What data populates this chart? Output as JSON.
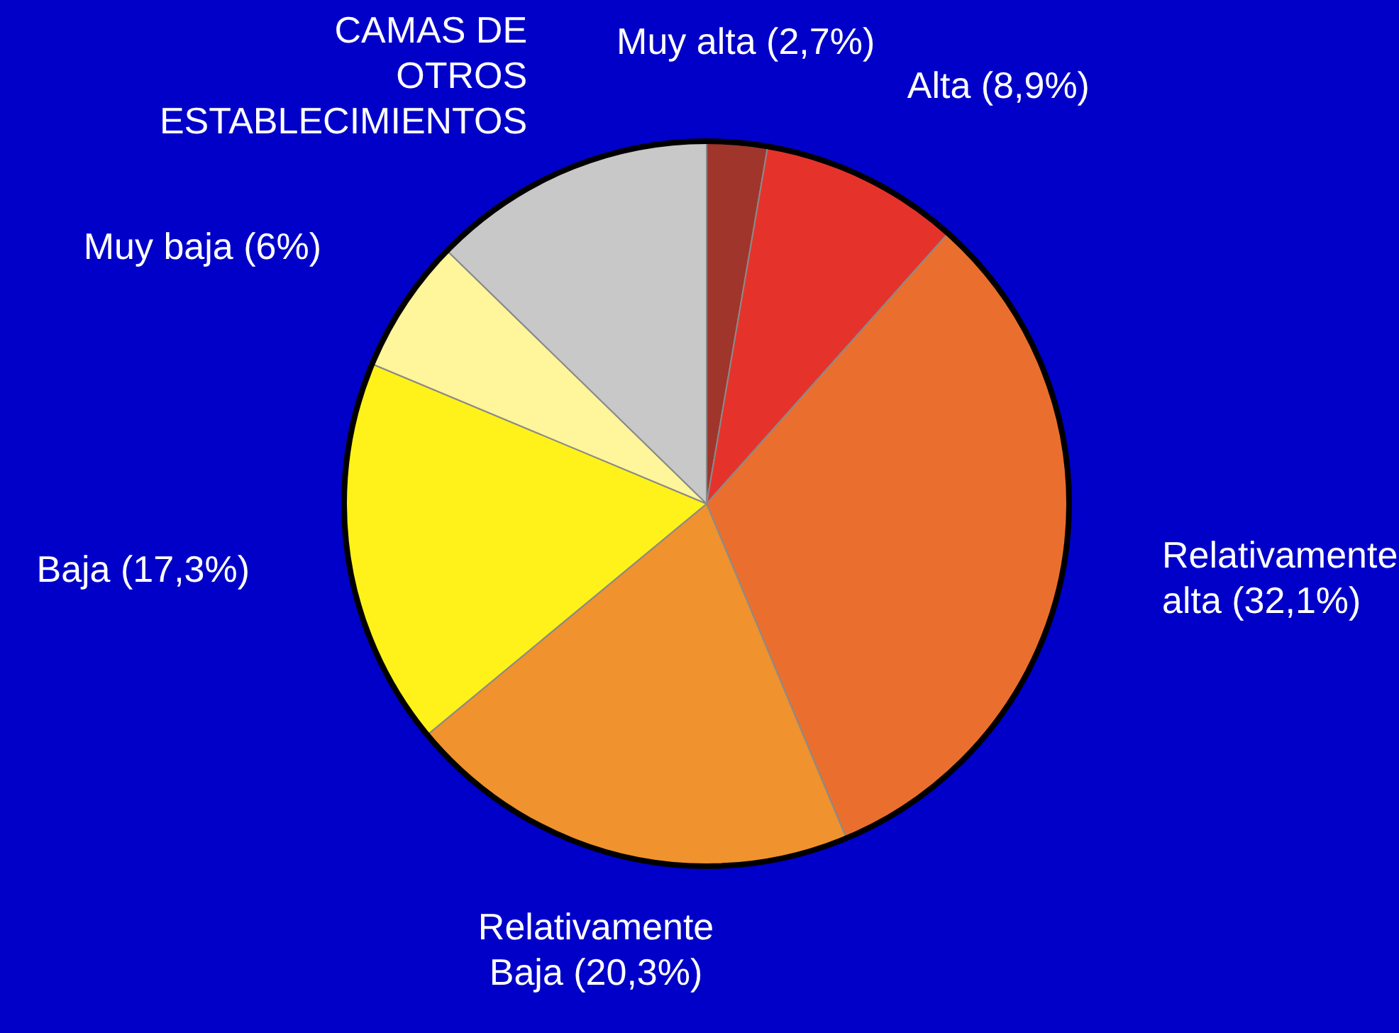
{
  "chart_data": {
    "type": "pie",
    "categories": [
      "Muy alta (2,7%)",
      "Alta (8,9%)",
      "Relativamente alta (32,1%)",
      "Relativamente Baja (20,3%)",
      "Baja (17,3%)",
      "Muy baja (6%)",
      "CAMAS DE OTROS ESTABLECIMIENTOS"
    ],
    "values": [
      2.7,
      8.9,
      32.1,
      20.3,
      17.3,
      6,
      12.7
    ],
    "colors": [
      "#a0352b",
      "#e5332b",
      "#ea6f2e",
      "#f0922d",
      "#fff21a",
      "#fff59a",
      "#c8c8c8"
    ],
    "legend": false
  }
}
